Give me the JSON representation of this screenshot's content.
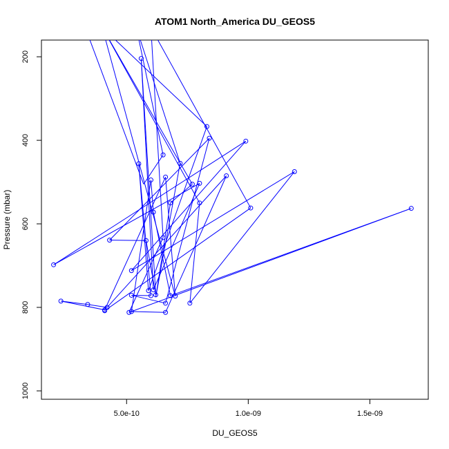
{
  "chart_data": {
    "type": "line",
    "title": "ATOM1 North_America DU_GEOS5",
    "xlabel": "DU_GEOS5",
    "ylabel": "Pressure (mbar)",
    "xlim": [
      1.5e-10,
      1.74e-09
    ],
    "ylim": [
      1020,
      160
    ],
    "y_reversed": true,
    "grid": false,
    "legend": "none",
    "x_ticks": [
      {
        "value": 5e-10,
        "label": "5.0e-10"
      },
      {
        "value": 1e-09,
        "label": "1.0e-09"
      },
      {
        "value": 1.5e-09,
        "label": "1.5e-09"
      }
    ],
    "y_ticks": [
      {
        "value": 200,
        "label": "200"
      },
      {
        "value": 400,
        "label": "400"
      },
      {
        "value": 600,
        "label": "600"
      },
      {
        "value": 800,
        "label": "800"
      },
      {
        "value": 1000,
        "label": "1000"
      }
    ],
    "series": [
      {
        "color": "#0000ff",
        "marker": "open-circle",
        "points": [
          {
            "x": 3.3e-10,
            "y": 130,
            "marker": false
          },
          {
            "x": 5.7e-10,
            "y": 505,
            "marker": false
          },
          {
            "x": 6.5e-10,
            "y": 435
          },
          {
            "x": 5.4e-10,
            "y": 130,
            "marker": false
          },
          {
            "x": 7.2e-10,
            "y": 455
          },
          {
            "x": 6.2e-10,
            "y": 775,
            "marker": false
          },
          {
            "x": 6.8e-10,
            "y": 550
          },
          {
            "x": 7.7e-10,
            "y": 505
          },
          {
            "x": 4e-10,
            "y": 130,
            "marker": false
          },
          {
            "x": 8e-10,
            "y": 550
          },
          {
            "x": 7.6e-10,
            "y": 790
          },
          {
            "x": 1.19e-09,
            "y": 475
          },
          {
            "x": 5.2e-10,
            "y": 712
          },
          {
            "x": 9.9e-10,
            "y": 402
          },
          {
            "x": 2e-10,
            "y": 698
          },
          {
            "x": 8e-10,
            "y": 503
          },
          {
            "x": 6.1e-10,
            "y": 758
          },
          {
            "x": 5.6e-10,
            "y": 204
          },
          {
            "x": 6.2e-10,
            "y": 770
          },
          {
            "x": 5.8e-10,
            "y": 640
          },
          {
            "x": 4.3e-10,
            "y": 639
          },
          {
            "x": 8.4e-10,
            "y": 395
          },
          {
            "x": 6.6e-10,
            "y": 790
          },
          {
            "x": 5.2e-10,
            "y": 771
          },
          {
            "x": 6e-10,
            "y": 772
          },
          {
            "x": 5.5e-10,
            "y": 456
          },
          {
            "x": 5.9e-10,
            "y": 760
          },
          {
            "x": 8.3e-10,
            "y": 367
          },
          {
            "x": 4e-10,
            "y": 130,
            "marker": false
          },
          {
            "x": 7e-10,
            "y": 773
          },
          {
            "x": 6.6e-10,
            "y": 488
          },
          {
            "x": 4.1e-10,
            "y": 806
          },
          {
            "x": 2.3e-10,
            "y": 785
          },
          {
            "x": 3.4e-10,
            "y": 793
          },
          {
            "x": 4.2e-10,
            "y": 800
          },
          {
            "x": 9.1e-10,
            "y": 485
          },
          {
            "x": 6.6e-10,
            "y": 812
          },
          {
            "x": 5.2e-10,
            "y": 810
          },
          {
            "x": 6e-10,
            "y": 495
          },
          {
            "x": 6.1e-10,
            "y": 572
          },
          {
            "x": 6.8e-10,
            "y": 772
          },
          {
            "x": 1.67e-09,
            "y": 563
          },
          {
            "x": 5.1e-10,
            "y": 812
          },
          {
            "x": 6.5e-10,
            "y": 633
          },
          {
            "x": 6e-10,
            "y": 130,
            "marker": false
          },
          {
            "x": 1.01e-09,
            "y": 562
          },
          {
            "x": 4.1e-10,
            "y": 808
          }
        ]
      }
    ]
  }
}
